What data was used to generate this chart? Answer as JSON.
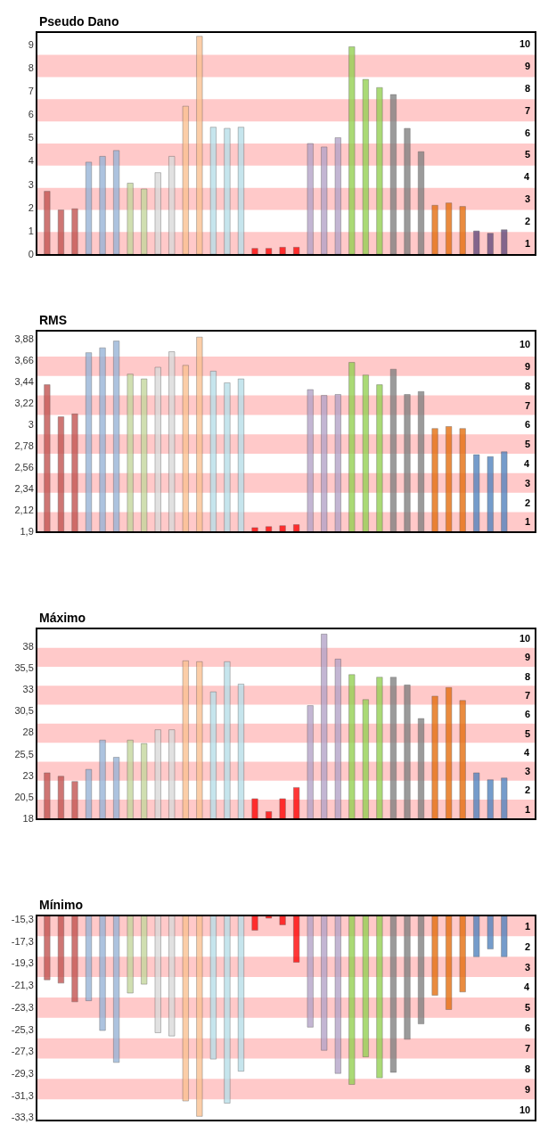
{
  "chart_data": [
    {
      "type": "bar",
      "title": "Pseudo Dano",
      "tick_labels": "y",
      "categories": [
        null,
        null,
        null,
        null,
        null,
        null,
        null,
        null,
        null,
        null,
        null,
        null,
        null,
        null,
        null,
        null,
        null,
        null,
        null,
        null,
        null,
        null,
        null,
        null,
        null,
        null,
        null,
        null,
        null,
        null,
        null,
        null,
        null,
        null
      ],
      "values": [
        2.7,
        1.9,
        1.95,
        3.95,
        4.2,
        4.45,
        3.05,
        2.8,
        3.5,
        4.2,
        6.35,
        9.35,
        5.45,
        5.4,
        5.45,
        0.25,
        0.25,
        0.3,
        0.3,
        4.75,
        4.6,
        5.0,
        8.9,
        7.5,
        7.15,
        6.85,
        5.4,
        4.4,
        2.1,
        2.2,
        2.05,
        1.0,
        0.9,
        1.05
      ],
      "colors": [
        "#c0504d",
        "#c0504d",
        "#c0504d",
        "#95b3d7",
        "#95b3d7",
        "#95b3d7",
        "#c3d69b",
        "#c3d69b",
        "#d9d9d9",
        "#d9d9d9",
        "#fac090",
        "#fac090",
        "#b7dee8",
        "#b7dee8",
        "#b7dee8",
        "#ff0000",
        "#ff0000",
        "#ff0000",
        "#ff0000",
        "#b3a2c7",
        "#b3a2c7",
        "#b3a2c7",
        "#92d050",
        "#92d050",
        "#92d050",
        "#7f7f7f",
        "#7f7f7f",
        "#7f7f7f",
        "#e46c0a",
        "#e46c0a",
        "#e46c0a",
        "#604a7b",
        "#604a7b",
        "#604a7b"
      ],
      "ylim": [
        0,
        9.5
      ],
      "yticks": [
        0,
        1,
        2,
        3,
        4,
        5,
        6,
        7,
        8,
        9
      ],
      "bands": [
        {
          "axis": "y",
          "from": 0,
          "to": 0.95,
          "label": "1",
          "color": "#ffc9c9"
        },
        {
          "axis": "y",
          "from": 1.9,
          "to": 2.85,
          "label": "3",
          "color": "#ffc9c9"
        },
        {
          "axis": "y",
          "from": 3.8,
          "to": 4.75,
          "label": "5",
          "color": "#ffc9c9"
        },
        {
          "axis": "y",
          "from": 5.7,
          "to": 6.65,
          "label": "7",
          "color": "#ffc9c9"
        },
        {
          "axis": "y",
          "from": 7.6,
          "to": 8.55,
          "label": "9",
          "color": "#ffc9c9"
        }
      ],
      "annotations": [
        "2",
        "4",
        "6",
        "8",
        "10"
      ]
    },
    {
      "type": "bar",
      "title": "RMS",
      "tick_labels": "y",
      "categories": [
        null,
        null,
        null,
        null,
        null,
        null,
        null,
        null,
        null,
        null,
        null,
        null,
        null,
        null,
        null,
        null,
        null,
        null,
        null,
        null,
        null,
        null,
        null,
        null,
        null,
        null,
        null,
        null,
        null,
        null,
        null,
        null,
        null,
        null
      ],
      "values": [
        3.41,
        3.08,
        3.11,
        3.74,
        3.79,
        3.86,
        3.52,
        3.47,
        3.59,
        3.75,
        3.61,
        3.9,
        3.55,
        3.43,
        3.47,
        1.94,
        1.95,
        1.96,
        1.97,
        3.36,
        3.3,
        3.31,
        3.64,
        3.51,
        3.41,
        3.57,
        3.31,
        3.34,
        2.96,
        2.98,
        2.96,
        2.69,
        2.67,
        2.72
      ],
      "colors": [
        "#c0504d",
        "#c0504d",
        "#c0504d",
        "#95b3d7",
        "#95b3d7",
        "#95b3d7",
        "#c3d69b",
        "#c3d69b",
        "#d9d9d9",
        "#d9d9d9",
        "#fac090",
        "#fac090",
        "#b7dee8",
        "#b7dee8",
        "#b7dee8",
        "#ff0000",
        "#ff0000",
        "#ff0000",
        "#ff0000",
        "#b3a2c7",
        "#b3a2c7",
        "#b3a2c7",
        "#92d050",
        "#92d050",
        "#92d050",
        "#7f7f7f",
        "#7f7f7f",
        "#7f7f7f",
        "#e46c0a",
        "#e46c0a",
        "#e46c0a",
        "#4f81bd",
        "#4f81bd",
        "#4f81bd"
      ],
      "ylim": [
        1.9,
        3.96
      ],
      "yticks": [
        {
          "value": 1.9,
          "label": "1,9"
        },
        {
          "value": 2.12,
          "label": "2,12"
        },
        {
          "value": 2.34,
          "label": "2,34"
        },
        {
          "value": 2.56,
          "label": "2,56"
        },
        {
          "value": 2.78,
          "label": "2,78"
        },
        3,
        {
          "value": 3.22,
          "label": "3,22"
        },
        {
          "value": 3.44,
          "label": "3,44"
        },
        {
          "value": 3.66,
          "label": "3,66"
        },
        {
          "value": 3.88,
          "label": "3,88"
        }
      ],
      "bands": [
        {
          "axis": "y",
          "from": 1.9,
          "to": 2.1,
          "label": "1",
          "color": "#ffc9c9"
        },
        {
          "axis": "y",
          "from": 2.3,
          "to": 2.5,
          "label": "3",
          "color": "#ffc9c9"
        },
        {
          "axis": "y",
          "from": 2.7,
          "to": 2.9,
          "label": "5",
          "color": "#ffc9c9"
        },
        {
          "axis": "y",
          "from": 3.1,
          "to": 3.3,
          "label": "7",
          "color": "#ffc9c9"
        },
        {
          "axis": "y",
          "from": 3.5,
          "to": 3.7,
          "label": "9",
          "color": "#ffc9c9"
        }
      ],
      "annotations": [
        "2",
        "4",
        "6",
        "8",
        "10"
      ]
    },
    {
      "type": "bar",
      "title": "Máximo",
      "tick_labels": "y",
      "categories": [
        null,
        null,
        null,
        null,
        null,
        null,
        null,
        null,
        null,
        null,
        null,
        null,
        null,
        null,
        null,
        null,
        null,
        null,
        null,
        null,
        null,
        null,
        null,
        null,
        null,
        null,
        null,
        null,
        null,
        null,
        null,
        null,
        null,
        null
      ],
      "values": [
        23.3,
        22.9,
        22.3,
        23.7,
        27.1,
        25.1,
        27.1,
        26.7,
        28.3,
        28.3,
        36.3,
        36.2,
        32.7,
        36.2,
        33.6,
        20.3,
        18.8,
        20.3,
        21.6,
        31.1,
        39.4,
        36.5,
        34.7,
        31.8,
        34.4,
        34.4,
        33.5,
        29.6,
        32.2,
        33.2,
        31.7,
        23.3,
        22.5,
        22.7
      ],
      "colors": [
        "#c0504d",
        "#c0504d",
        "#c0504d",
        "#95b3d7",
        "#95b3d7",
        "#95b3d7",
        "#c3d69b",
        "#c3d69b",
        "#d9d9d9",
        "#d9d9d9",
        "#fac090",
        "#fac090",
        "#b7dee8",
        "#b7dee8",
        "#b7dee8",
        "#ff0000",
        "#ff0000",
        "#ff0000",
        "#ff0000",
        "#b3a2c7",
        "#b3a2c7",
        "#b3a2c7",
        "#92d050",
        "#92d050",
        "#92d050",
        "#7f7f7f",
        "#7f7f7f",
        "#7f7f7f",
        "#e46c0a",
        "#e46c0a",
        "#e46c0a",
        "#4f81bd",
        "#4f81bd",
        "#4f81bd"
      ],
      "ylim": [
        18,
        40
      ],
      "yticks": [
        18,
        {
          "value": 20.5,
          "label": "20,5"
        },
        23,
        {
          "value": 25.5,
          "label": "25,5"
        },
        28,
        {
          "value": 30.5,
          "label": "30,5"
        },
        33,
        {
          "value": 35.5,
          "label": "35,5"
        },
        38
      ],
      "bands": [
        {
          "axis": "y",
          "from": 18,
          "to": 20.2,
          "label": "1",
          "color": "#ffc9c9"
        },
        {
          "axis": "y",
          "from": 22.4,
          "to": 24.6,
          "label": "3",
          "color": "#ffc9c9"
        },
        {
          "axis": "y",
          "from": 26.8,
          "to": 29,
          "label": "5",
          "color": "#ffc9c9"
        },
        {
          "axis": "y",
          "from": 31.2,
          "to": 33.4,
          "label": "7",
          "color": "#ffc9c9"
        },
        {
          "axis": "y",
          "from": 35.6,
          "to": 37.8,
          "label": "9",
          "color": "#ffc9c9"
        }
      ],
      "annotations": [
        "2",
        "4",
        "6",
        "8",
        "10"
      ]
    },
    {
      "type": "bar",
      "title": "Mínimo",
      "tick_labels": "y",
      "categories": [
        null,
        null,
        null,
        null,
        null,
        null,
        null,
        null,
        null,
        null,
        null,
        null,
        null,
        null,
        null,
        null,
        null,
        null,
        null,
        null,
        null,
        null,
        null,
        null,
        null,
        null,
        null,
        null,
        null,
        null,
        null,
        null,
        null,
        null
      ],
      "values": [
        -20.8,
        -21.1,
        -22.8,
        -22.7,
        -25.4,
        -28.3,
        -22,
        -21.2,
        -25.6,
        -25.9,
        -31.8,
        -33.2,
        -28,
        -32,
        -29.1,
        -16.3,
        -15.2,
        -15.8,
        -19.2,
        -25.1,
        -27.2,
        -29.3,
        -30.3,
        -27.8,
        -29.7,
        -29.2,
        -26.2,
        -24.8,
        -22.2,
        -23.5,
        -21.9,
        -18.7,
        -18,
        -18.7
      ],
      "colors": [
        "#c0504d",
        "#c0504d",
        "#c0504d",
        "#95b3d7",
        "#95b3d7",
        "#95b3d7",
        "#c3d69b",
        "#c3d69b",
        "#d9d9d9",
        "#d9d9d9",
        "#fac090",
        "#fac090",
        "#b7dee8",
        "#b7dee8",
        "#b7dee8",
        "#ff0000",
        "#ff0000",
        "#ff0000",
        "#ff0000",
        "#b3a2c7",
        "#b3a2c7",
        "#b3a2c7",
        "#92d050",
        "#92d050",
        "#92d050",
        "#7f7f7f",
        "#7f7f7f",
        "#7f7f7f",
        "#e46c0a",
        "#e46c0a",
        "#e46c0a",
        "#4f81bd",
        "#4f81bd",
        "#4f81bd"
      ],
      "ylim": [
        -33.5,
        -15
      ],
      "yticks": [
        {
          "value": -15.3,
          "label": "-15,3"
        },
        {
          "value": -17.3,
          "label": "-17,3"
        },
        {
          "value": -19.3,
          "label": "-19,3"
        },
        {
          "value": -21.3,
          "label": "-21,3"
        },
        {
          "value": -23.3,
          "label": "-23,3"
        },
        {
          "value": -25.3,
          "label": "-25,3"
        },
        {
          "value": -27.3,
          "label": "-27,3"
        },
        {
          "value": -29.3,
          "label": "-29,3"
        },
        {
          "value": -31.3,
          "label": "-31,3"
        },
        {
          "value": -33.3,
          "label": "-33,3"
        }
      ],
      "bands": [
        {
          "axis": "y",
          "from": -15,
          "to": -16.85,
          "label": "1",
          "color": "#ffc9c9"
        },
        {
          "axis": "y",
          "from": -18.7,
          "to": -20.55,
          "label": "3",
          "color": "#ffc9c9"
        },
        {
          "axis": "y",
          "from": -22.4,
          "to": -24.25,
          "label": "5",
          "color": "#ffc9c9"
        },
        {
          "axis": "y",
          "from": -26.1,
          "to": -27.95,
          "label": "7",
          "color": "#ffc9c9"
        },
        {
          "axis": "y",
          "from": -29.8,
          "to": -31.65,
          "label": "9",
          "color": "#ffc9c9"
        }
      ],
      "annotations": [
        "2",
        "4",
        "6",
        "8",
        "10"
      ]
    }
  ]
}
